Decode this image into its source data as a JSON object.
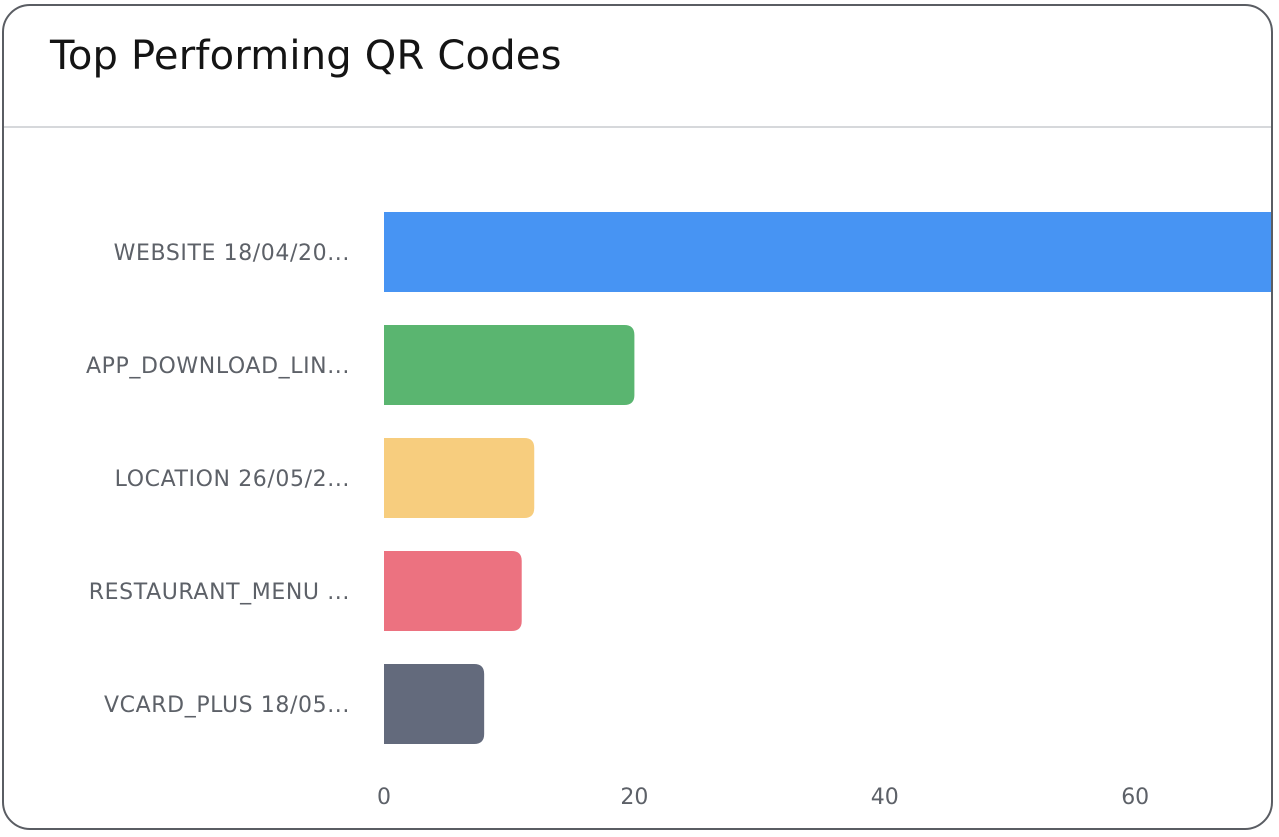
{
  "card": {
    "title": "Top Performing QR Codes"
  },
  "chart_data": {
    "type": "bar",
    "orientation": "horizontal",
    "title": "Top Performing QR Codes",
    "xlabel": "",
    "ylabel": "",
    "categories": [
      "WEBSITE 18/04/20...",
      "APP_DOWNLOAD_LIN...",
      "LOCATION 26/05/2...",
      "RESTAURANT_MENU ...",
      "VCARD_PLUS 18/05..."
    ],
    "values": [
      75,
      20,
      12,
      11,
      8
    ],
    "colors": [
      "#4794f3",
      "#5ab570",
      "#f7cd7e",
      "#ec7280",
      "#636a7c"
    ],
    "xlim": [
      0,
      71
    ],
    "xticks": [
      0,
      20,
      40,
      60
    ],
    "grid": false,
    "legend": "none"
  }
}
